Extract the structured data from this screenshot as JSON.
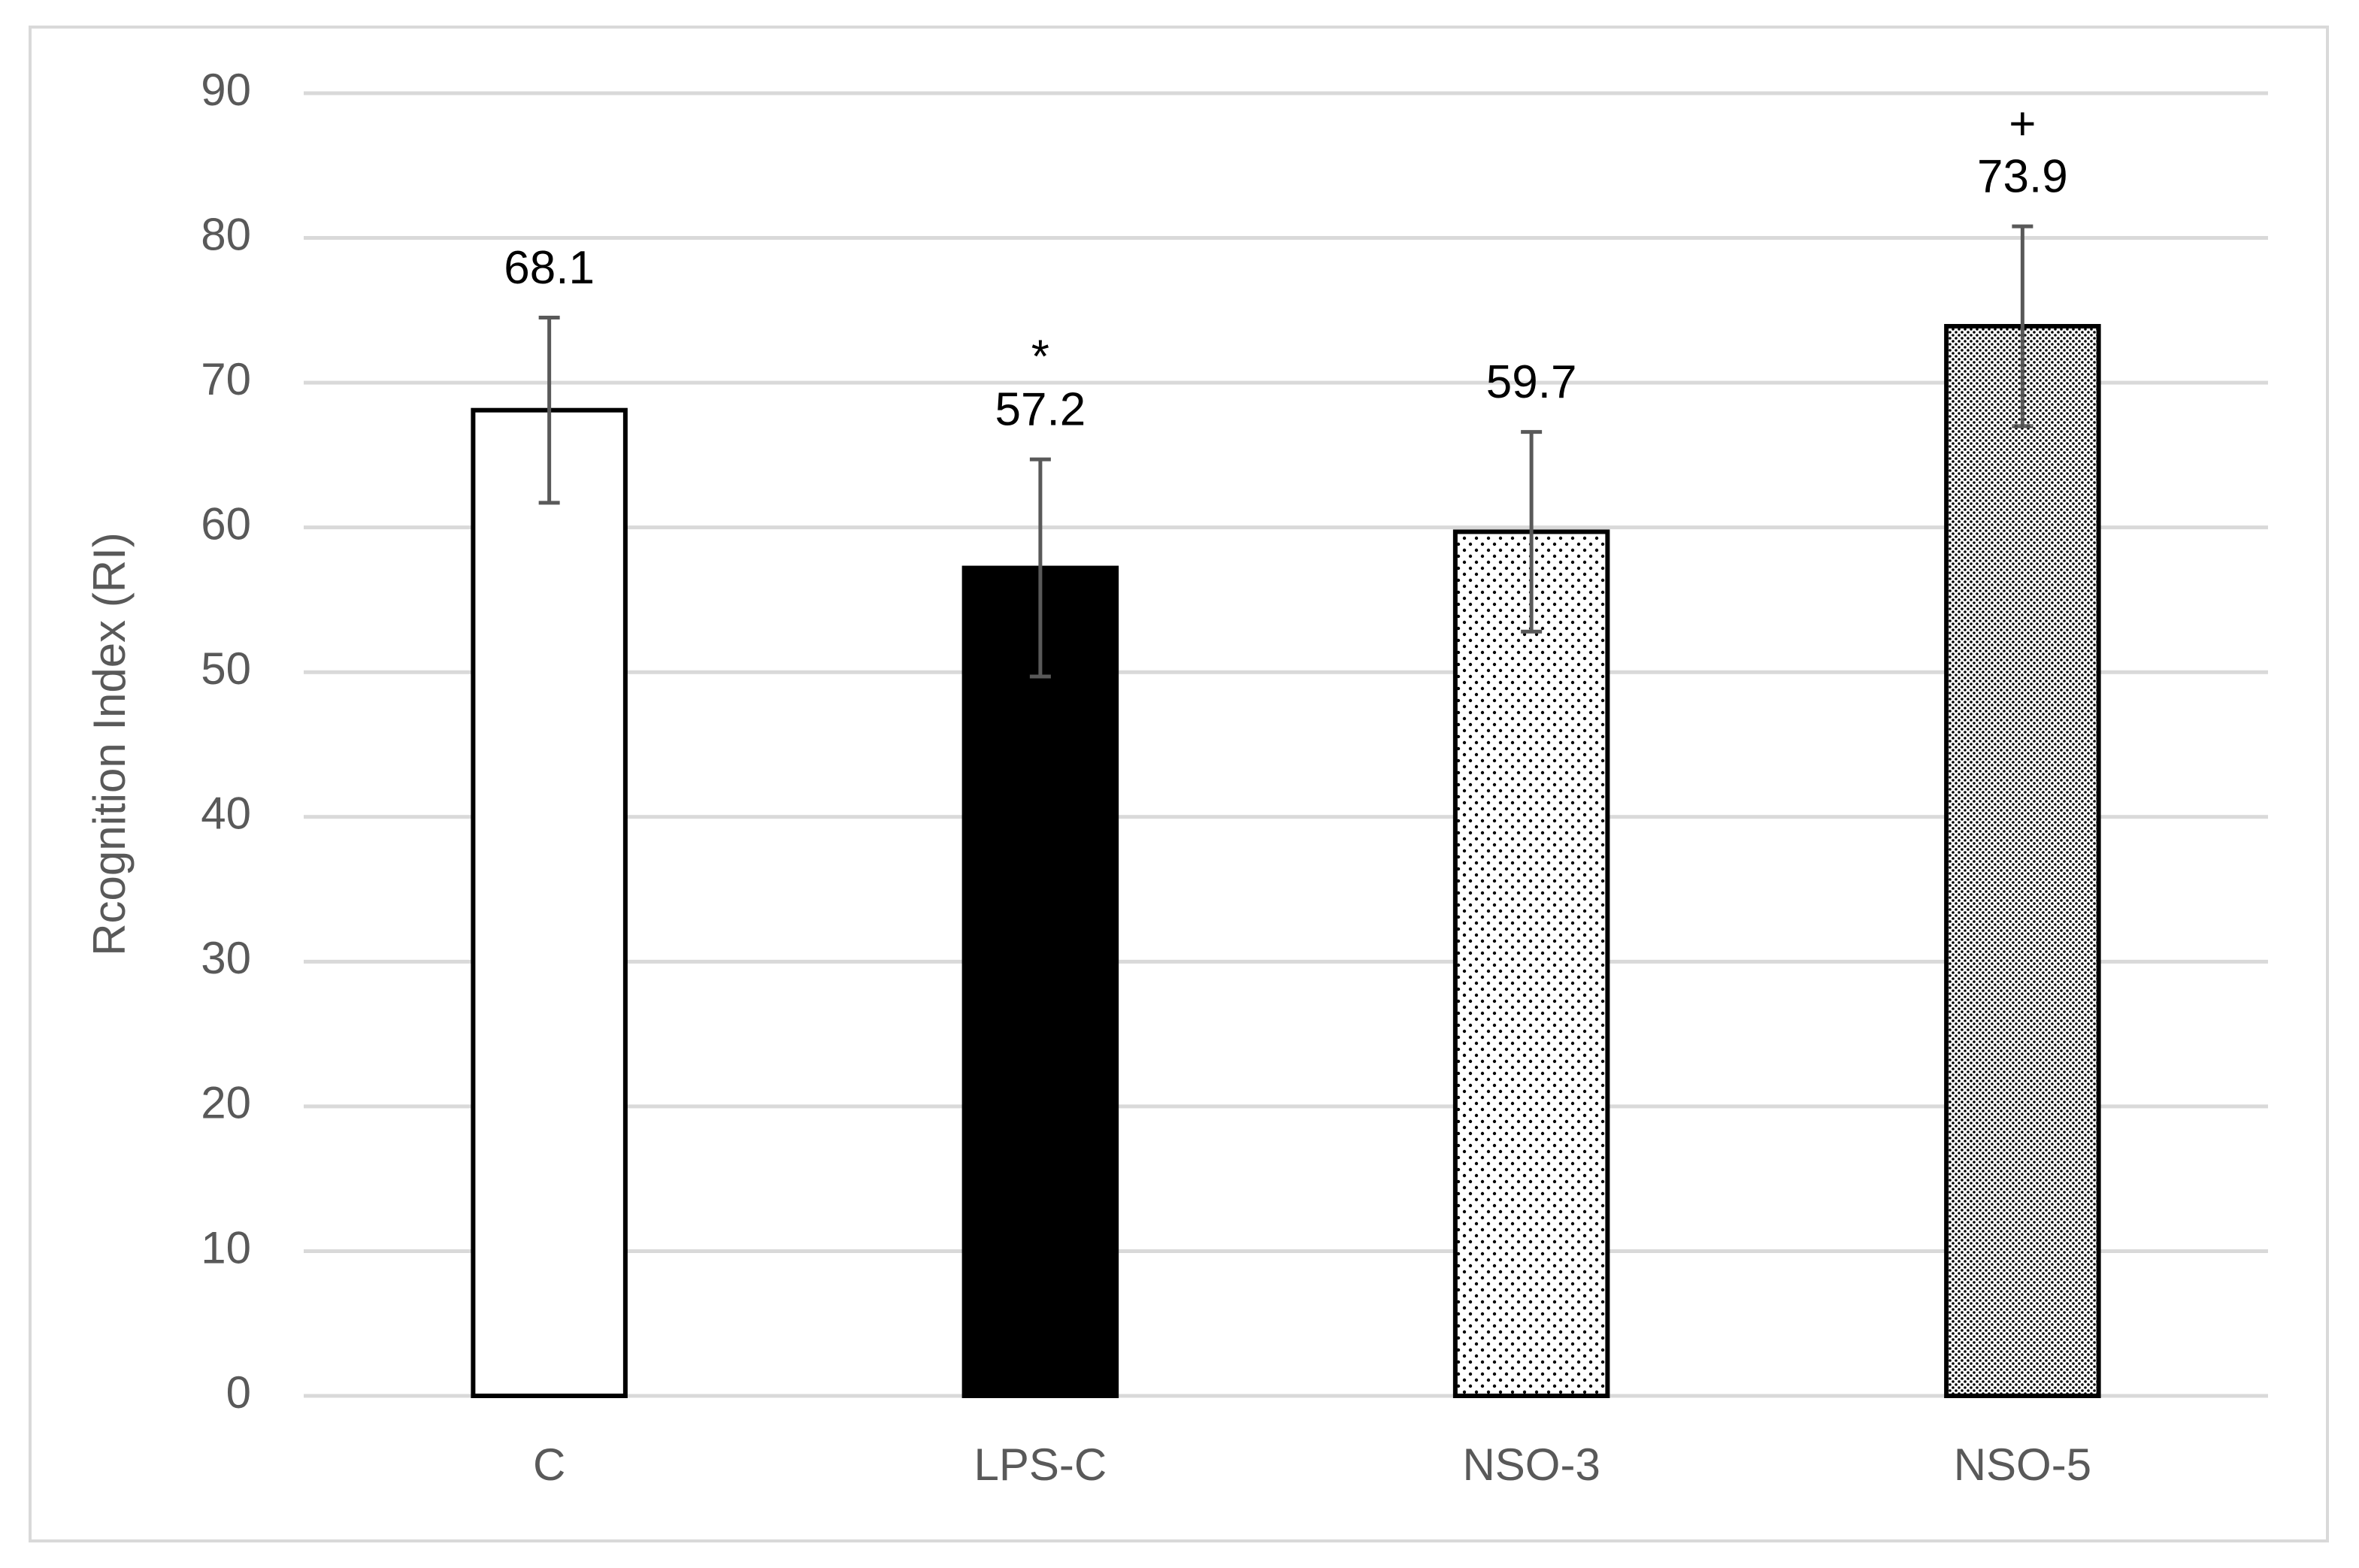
{
  "chart_data": {
    "type": "bar",
    "y_label": "Rcognition Index (RI)",
    "categories": [
      "C",
      "LPS-C",
      "NSO-3",
      "NSO-5"
    ],
    "values": [
      68.1,
      57.2,
      59.7,
      73.9
    ],
    "errors": [
      6.4,
      7.5,
      6.9,
      6.9
    ],
    "significance": [
      null,
      "*",
      null,
      "+"
    ],
    "fills": [
      "white",
      "black",
      "dots",
      "dense-dots"
    ],
    "ylim": [
      0,
      90
    ],
    "yticks": [
      0,
      10,
      20,
      30,
      40,
      50,
      60,
      70,
      80,
      90
    ],
    "grid": true
  }
}
